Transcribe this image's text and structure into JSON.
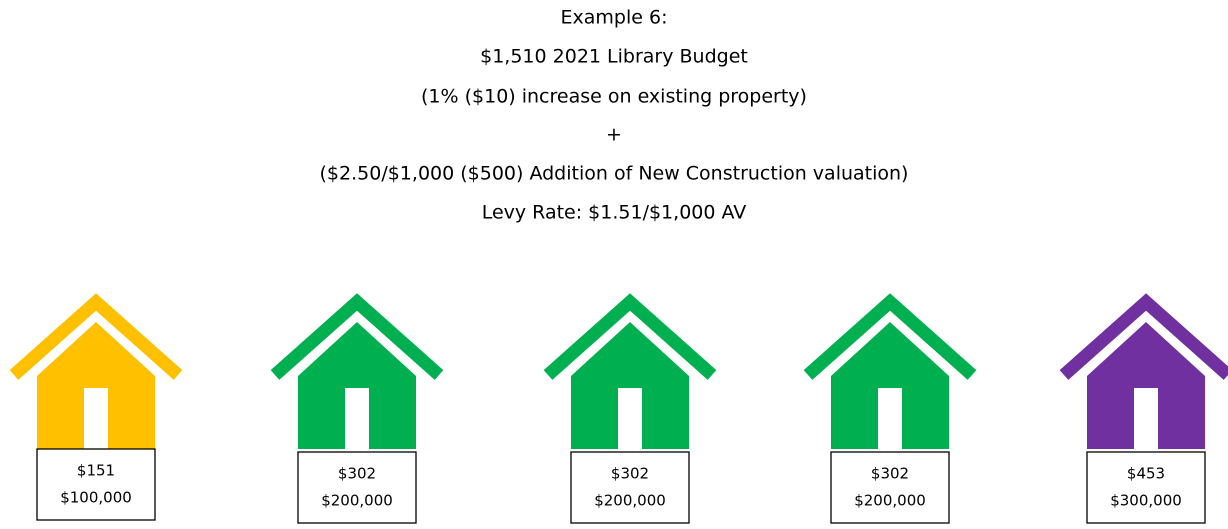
{
  "title_lines": [
    "Example 6:",
    "$1,510 2021 Library Budget",
    "(1% ($10) increase on existing property)",
    "+",
    "($2.50/$1,000 ($500) Addition of New Construction valuation)",
    "Levy Rate: $1.51/$1,000 AV"
  ],
  "houses": [
    {
      "color": "#ffc000",
      "tax": "$151",
      "value": "$100,000"
    },
    {
      "color": "#00b050",
      "tax": "$302",
      "value": "$200,000"
    },
    {
      "color": "#00b050",
      "tax": "$302",
      "value": "$200,000"
    },
    {
      "color": "#00b050",
      "tax": "$302",
      "value": "$200,000"
    },
    {
      "color": "#7030a0",
      "tax": "$453",
      "value": "$300,000"
    }
  ]
}
